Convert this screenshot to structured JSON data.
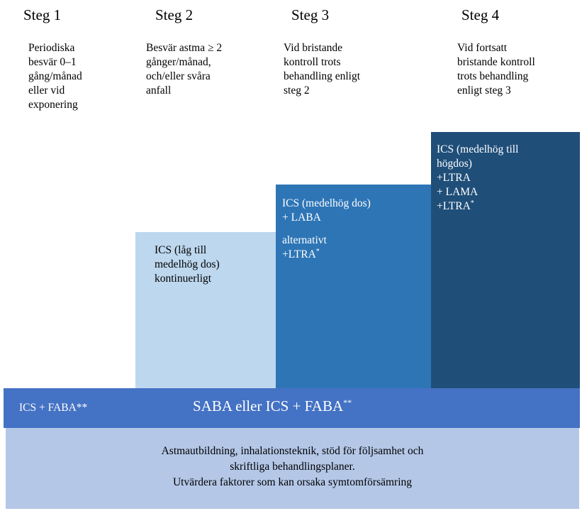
{
  "steps": [
    {
      "title": "Steg 1",
      "desc": [
        "Periodiska",
        "besvär 0–1",
        "gång/månad",
        "eller vid",
        "exponering"
      ]
    },
    {
      "title": "Steg 2",
      "desc": [
        "Besvär astma ≥ 2",
        "gånger/månad,",
        "och/eller svåra",
        "anfall"
      ]
    },
    {
      "title": "Steg 3",
      "desc": [
        "Vid bristande",
        "kontroll trots",
        "behandling enligt",
        "steg 2"
      ]
    },
    {
      "title": "Steg 4",
      "desc": [
        "Vid fortsatt",
        "bristande kontroll",
        "trots behandling",
        "enligt steg 3"
      ]
    }
  ],
  "blocks": {
    "step2": {
      "lines": [
        "ICS (låg till",
        "medelhög dos)",
        "kontinuerligt"
      ]
    },
    "step3": {
      "lines": [
        "ICS (medelhög dos)",
        "+ LABA"
      ],
      "alt_line": "alternativt",
      "alt_text": "+LTRA",
      "alt_sup": "*"
    },
    "step4": {
      "lines": [
        "ICS (medelhög till",
        "högdos)",
        "+LTRA",
        "+ LAMA"
      ],
      "last_text": "+LTRA",
      "last_sup": "*"
    }
  },
  "bar": {
    "left_text": "ICS + FABA**",
    "center_text": "SABA eller ICS + FABA",
    "center_sup": "**"
  },
  "base": {
    "lines": [
      "Astmautbildning, inhalationsteknik, stöd för följsamhet och",
      "skriftliga behandlingsplaner.",
      "Utvärdera faktorer som kan orsaka symtomförsämring"
    ]
  },
  "colors": {
    "step2_block": "#bdd7ee",
    "step3_block": "#2e75b6",
    "step4_block": "#1f4e79",
    "bar": "#4472c4",
    "base": "#b4c7e7"
  }
}
